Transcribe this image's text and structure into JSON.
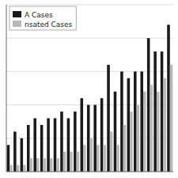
{
  "chart_data": {
    "type": "bar",
    "categories": [
      null,
      null,
      null,
      null,
      null,
      null,
      null,
      null,
      null,
      null,
      null,
      null,
      null,
      null,
      null,
      null,
      null,
      null,
      null,
      null,
      null,
      null,
      null,
      null,
      null
    ],
    "series": [
      {
        "name": "A Cases",
        "color": "#1a1a1a",
        "values": [
          4,
          6,
          5,
          7,
          8,
          7,
          8,
          8,
          9,
          8,
          9,
          11,
          10,
          10,
          11,
          16,
          12,
          15,
          14,
          15,
          15,
          20,
          18,
          18,
          22
        ]
      },
      {
        "name": "nsated Cases",
        "color": "#b8b8b8",
        "values": [
          1,
          1,
          1,
          2,
          2,
          2,
          2,
          2,
          3,
          3,
          3,
          4,
          5,
          4,
          4,
          6,
          4,
          7,
          9,
          10,
          12,
          13,
          12,
          14,
          16
        ]
      }
    ],
    "ylim": [
      0,
      25
    ],
    "yticks": [
      5,
      10,
      15,
      20,
      25
    ],
    "grid": true,
    "legend": "upper left",
    "tick_labels": false
  }
}
